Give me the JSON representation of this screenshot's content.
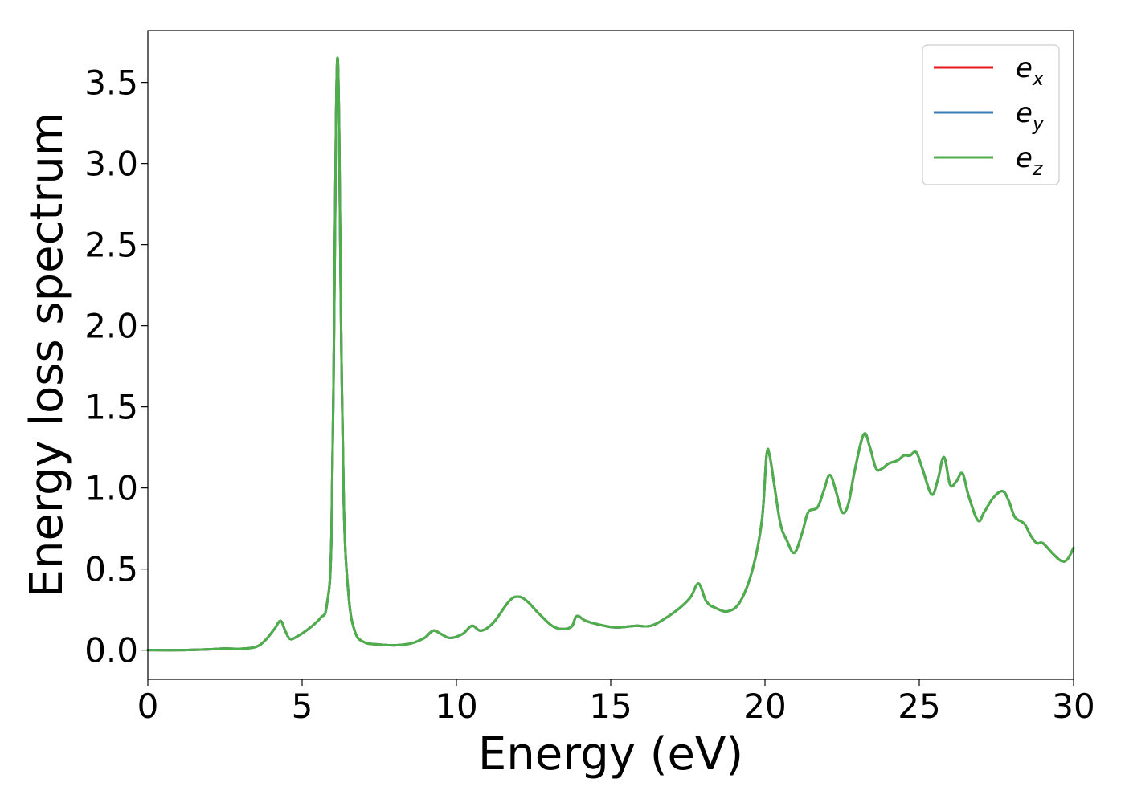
{
  "chart_data": {
    "type": "line",
    "xlabel": "Energy (eV)",
    "ylabel": "Energy loss spectrum",
    "xlim": [
      0,
      30
    ],
    "ylim": [
      -0.18,
      3.82
    ],
    "xticks": [
      0,
      5,
      10,
      15,
      20,
      25,
      30
    ],
    "yticks": [
      0.0,
      0.5,
      1.0,
      1.5,
      2.0,
      2.5,
      3.0,
      3.5
    ],
    "xtick_labels": [
      "0",
      "5",
      "10",
      "15",
      "20",
      "25",
      "30"
    ],
    "ytick_labels": [
      "0.0",
      "0.5",
      "1.0",
      "1.5",
      "2.0",
      "2.5",
      "3.0",
      "3.5"
    ],
    "grid": false,
    "legend_position": "top-right",
    "x": [
      0,
      1,
      2,
      2.5,
      3,
      3.5,
      3.8,
      4.1,
      4.3,
      4.45,
      4.6,
      4.8,
      5.2,
      5.6,
      5.8,
      5.95,
      6.05,
      6.1,
      6.15,
      6.2,
      6.25,
      6.35,
      6.5,
      6.7,
      7.0,
      7.5,
      8.0,
      8.5,
      8.8,
      9.0,
      9.25,
      9.5,
      9.8,
      10.2,
      10.5,
      10.8,
      11.2,
      11.7,
      12.0,
      12.3,
      12.7,
      13.2,
      13.7,
      13.9,
      14.2,
      14.8,
      15.2,
      15.8,
      16.3,
      16.8,
      17.3,
      17.6,
      17.85,
      18.1,
      18.4,
      18.8,
      19.2,
      19.6,
      19.9,
      20.05,
      20.15,
      20.3,
      20.5,
      20.7,
      20.95,
      21.2,
      21.4,
      21.7,
      21.9,
      22.1,
      22.3,
      22.5,
      22.7,
      22.9,
      23.2,
      23.4,
      23.6,
      23.8,
      24.0,
      24.3,
      24.5,
      24.7,
      24.9,
      25.1,
      25.4,
      25.6,
      25.8,
      26.0,
      26.2,
      26.4,
      26.6,
      26.9,
      27.1,
      27.4,
      27.7,
      27.9,
      28.1,
      28.4,
      28.6,
      28.8,
      29.0,
      29.3,
      29.6,
      29.8,
      30.0
    ],
    "series": [
      {
        "name": "e_x",
        "color": "#e41a1c",
        "values": [
          0.0,
          0.0,
          0.005,
          0.01,
          0.008,
          0.02,
          0.06,
          0.13,
          0.18,
          0.12,
          0.07,
          0.08,
          0.13,
          0.2,
          0.28,
          0.7,
          2.3,
          3.3,
          3.65,
          3.2,
          2.2,
          0.9,
          0.35,
          0.12,
          0.05,
          0.035,
          0.03,
          0.04,
          0.06,
          0.08,
          0.12,
          0.1,
          0.075,
          0.1,
          0.15,
          0.12,
          0.17,
          0.3,
          0.33,
          0.3,
          0.22,
          0.14,
          0.14,
          0.21,
          0.18,
          0.15,
          0.14,
          0.15,
          0.15,
          0.2,
          0.27,
          0.33,
          0.41,
          0.3,
          0.26,
          0.24,
          0.3,
          0.5,
          0.8,
          1.2,
          1.2,
          1.02,
          0.78,
          0.68,
          0.6,
          0.72,
          0.85,
          0.88,
          0.98,
          1.08,
          0.98,
          0.85,
          0.9,
          1.1,
          1.33,
          1.25,
          1.12,
          1.12,
          1.15,
          1.17,
          1.2,
          1.2,
          1.22,
          1.12,
          0.96,
          1.05,
          1.19,
          1.02,
          1.04,
          1.09,
          0.95,
          0.8,
          0.85,
          0.94,
          0.98,
          0.92,
          0.82,
          0.78,
          0.71,
          0.66,
          0.66,
          0.6,
          0.55,
          0.56,
          0.63
        ]
      },
      {
        "name": "e_y",
        "color": "#377eb8",
        "values": [
          0.0,
          0.0,
          0.005,
          0.01,
          0.008,
          0.02,
          0.06,
          0.13,
          0.18,
          0.12,
          0.07,
          0.08,
          0.13,
          0.2,
          0.28,
          0.7,
          2.3,
          3.3,
          3.65,
          3.2,
          2.2,
          0.9,
          0.35,
          0.12,
          0.05,
          0.035,
          0.03,
          0.04,
          0.06,
          0.08,
          0.12,
          0.1,
          0.075,
          0.1,
          0.15,
          0.12,
          0.17,
          0.3,
          0.33,
          0.3,
          0.22,
          0.14,
          0.14,
          0.21,
          0.18,
          0.15,
          0.14,
          0.15,
          0.15,
          0.2,
          0.27,
          0.33,
          0.41,
          0.3,
          0.26,
          0.24,
          0.3,
          0.5,
          0.8,
          1.2,
          1.2,
          1.02,
          0.78,
          0.68,
          0.6,
          0.72,
          0.85,
          0.88,
          0.98,
          1.08,
          0.98,
          0.85,
          0.9,
          1.1,
          1.33,
          1.25,
          1.12,
          1.12,
          1.15,
          1.17,
          1.2,
          1.2,
          1.22,
          1.12,
          0.96,
          1.05,
          1.19,
          1.02,
          1.04,
          1.09,
          0.95,
          0.8,
          0.85,
          0.94,
          0.98,
          0.92,
          0.82,
          0.78,
          0.71,
          0.66,
          0.66,
          0.6,
          0.55,
          0.56,
          0.63
        ]
      },
      {
        "name": "e_z",
        "color": "#4daf4a",
        "values": [
          0.0,
          0.0,
          0.005,
          0.01,
          0.008,
          0.02,
          0.06,
          0.13,
          0.18,
          0.12,
          0.07,
          0.08,
          0.13,
          0.2,
          0.28,
          0.7,
          2.3,
          3.3,
          3.65,
          3.2,
          2.2,
          0.9,
          0.35,
          0.12,
          0.05,
          0.035,
          0.03,
          0.04,
          0.06,
          0.08,
          0.12,
          0.1,
          0.075,
          0.1,
          0.15,
          0.12,
          0.17,
          0.3,
          0.33,
          0.3,
          0.22,
          0.14,
          0.14,
          0.21,
          0.18,
          0.15,
          0.14,
          0.15,
          0.15,
          0.2,
          0.27,
          0.33,
          0.41,
          0.3,
          0.26,
          0.24,
          0.3,
          0.5,
          0.8,
          1.2,
          1.2,
          1.02,
          0.78,
          0.68,
          0.6,
          0.72,
          0.85,
          0.88,
          0.98,
          1.08,
          0.98,
          0.85,
          0.9,
          1.1,
          1.33,
          1.25,
          1.12,
          1.12,
          1.15,
          1.17,
          1.2,
          1.2,
          1.22,
          1.12,
          0.96,
          1.05,
          1.19,
          1.02,
          1.04,
          1.09,
          0.95,
          0.8,
          0.85,
          0.94,
          0.98,
          0.92,
          0.82,
          0.78,
          0.71,
          0.66,
          0.66,
          0.6,
          0.55,
          0.56,
          0.63
        ]
      }
    ],
    "legend": [
      {
        "base": "e",
        "sub": "x"
      },
      {
        "base": "e",
        "sub": "y"
      },
      {
        "base": "e",
        "sub": "z"
      }
    ]
  }
}
